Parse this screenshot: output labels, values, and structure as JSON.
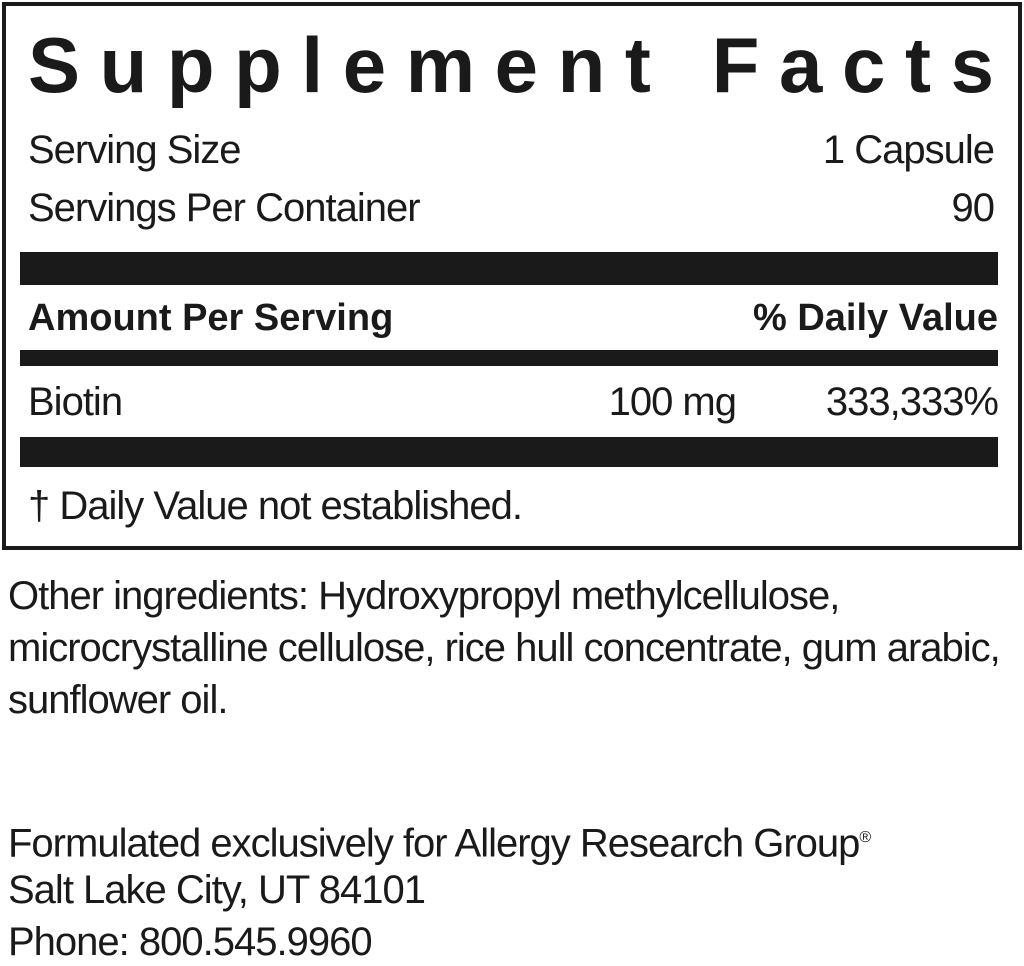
{
  "label": {
    "title": "Supplement Facts",
    "serving_size": {
      "label": "Serving Size",
      "value": "1 Capsule"
    },
    "servings_per_container": {
      "label": "Servings Per Container",
      "value": "90"
    },
    "header": {
      "amount": "Amount Per Serving",
      "daily_value": "% Daily Value"
    },
    "rows": [
      {
        "name": "Biotin",
        "amount": "100 mg",
        "daily_value": "333,333%"
      }
    ],
    "footnote": "† Daily Value not established."
  },
  "other_ingredients": "Other ingredients: Hydroxypropyl methylcellulose, microcrystalline cellulose, rice hull concentrate, gum arabic, sunflower oil.",
  "manufacturer": {
    "line1": "Formulated exclusively for Allergy Research Group",
    "registered": "®",
    "line2": "Salt Lake City, UT 84101",
    "line3": "Phone: 800.545.9960"
  }
}
